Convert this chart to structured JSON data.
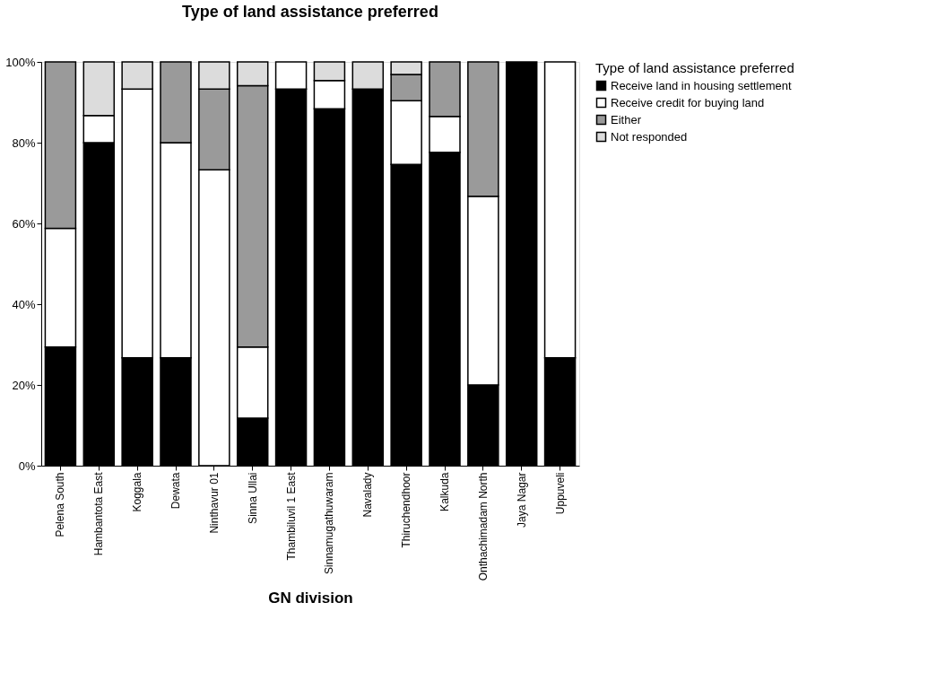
{
  "chart_data": {
    "type": "bar",
    "title": "Type of land assistance preferred",
    "xlabel": "GN division",
    "legend_title": "Type of land assistance preferred",
    "categories": [
      "Pelena South",
      "Hambantota East",
      "Koggala",
      "Dewata",
      "Ninthavur 01",
      "Sinna Ullai",
      "Thambiluvil 1 East",
      "Sinnamugathuwaram",
      "Navalady",
      "Thiruchendhoor",
      "Kalkuda",
      "Onthachimadam North",
      "Jaya Nagar",
      "Uppuveli"
    ],
    "stacked": true,
    "series": [
      {
        "name": "Receive land in housing settlement",
        "color": "#000000",
        "values": [
          29.4,
          80,
          26.7,
          26.7,
          0,
          11.8,
          93.3,
          88.4,
          93.3,
          74.6,
          77.6,
          20,
          100,
          26.7
        ]
      },
      {
        "name": "Receive credit for buying land",
        "color": "#ffffff",
        "values": [
          29.4,
          6.7,
          66.6,
          53.3,
          73.3,
          17.6,
          6.7,
          7,
          0,
          15.8,
          8.9,
          46.7,
          0,
          73.3
        ]
      },
      {
        "name": "Either",
        "color": "#9a9a9a",
        "values": [
          41.2,
          0,
          0,
          20,
          20,
          64.7,
          0,
          0,
          0,
          6.5,
          13.5,
          33.3,
          0,
          0
        ]
      },
      {
        "name": "Not responded",
        "color": "#dcdcdc",
        "values": [
          0,
          13.3,
          6.7,
          0,
          6.7,
          5.9,
          0,
          4.6,
          6.7,
          3.1,
          0,
          0,
          0,
          0
        ]
      }
    ],
    "ylim": [
      0,
      100
    ],
    "yticks": [
      {
        "value": 0,
        "label": "0%"
      },
      {
        "value": 20,
        "label": "20%"
      },
      {
        "value": 40,
        "label": "40%"
      },
      {
        "value": 60,
        "label": "60%"
      },
      {
        "value": 80,
        "label": "80%"
      },
      {
        "value": 100,
        "label": "100%"
      }
    ],
    "grid": false,
    "legend": "right"
  }
}
